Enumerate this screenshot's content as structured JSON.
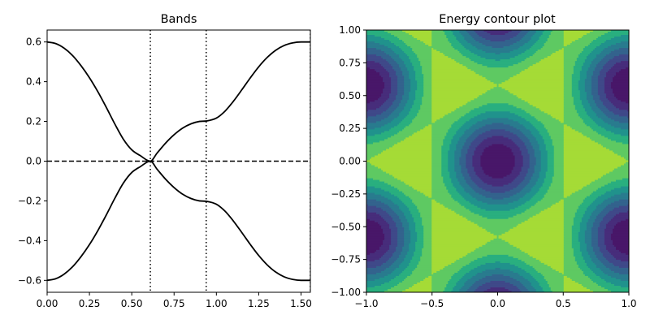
{
  "chart_data": [
    {
      "type": "line",
      "title": "Bands",
      "xlabel": "",
      "ylabel": "",
      "xlim": [
        0,
        1.5552
      ],
      "ylim": [
        -0.66,
        0.66
      ],
      "x_ticks": [
        0.0,
        0.25,
        0.5,
        0.75,
        1.0,
        1.25,
        1.5
      ],
      "x_tick_labels": [
        "0.00",
        "0.25",
        "0.50",
        "0.75",
        "1.00",
        "1.25",
        "1.50"
      ],
      "y_ticks": [
        0.6,
        0.4,
        0.2,
        0.0,
        -0.2,
        -0.4,
        -0.6
      ],
      "y_tick_labels": [
        "0.6",
        "0.4",
        "0.2",
        "0.0",
        "−0.2",
        "−0.4",
        "−0.6"
      ],
      "path_vertices_x": [
        0.0,
        0.6098,
        0.9398,
        1.5552
      ],
      "dotted_verticals_x": [
        0.6098,
        0.9398,
        1.5552
      ],
      "fermi_level_y": 0.0,
      "series": [
        {
          "name": "band-upper",
          "color": "#000000",
          "x": [
            0.0,
            0.05,
            0.1,
            0.15,
            0.2,
            0.25,
            0.3,
            0.35,
            0.4,
            0.45,
            0.5,
            0.55,
            0.6098,
            0.65,
            0.7,
            0.75,
            0.8,
            0.85,
            0.9,
            0.9398,
            1.0,
            1.05,
            1.1,
            1.15,
            1.2,
            1.25,
            1.3,
            1.35,
            1.4,
            1.45,
            1.5,
            1.5552
          ],
          "values": [
            0.6,
            0.592,
            0.569,
            0.532,
            0.481,
            0.42,
            0.349,
            0.27,
            0.187,
            0.111,
            0.057,
            0.028,
            0.0,
            0.041,
            0.091,
            0.133,
            0.166,
            0.188,
            0.2,
            0.202,
            0.217,
            0.251,
            0.301,
            0.359,
            0.419,
            0.475,
            0.522,
            0.558,
            0.582,
            0.595,
            0.6,
            0.6
          ]
        },
        {
          "name": "band-lower",
          "color": "#000000",
          "x": [
            0.0,
            0.05,
            0.1,
            0.15,
            0.2,
            0.25,
            0.3,
            0.35,
            0.4,
            0.45,
            0.5,
            0.55,
            0.6098,
            0.65,
            0.7,
            0.75,
            0.8,
            0.85,
            0.9,
            0.9398,
            1.0,
            1.05,
            1.1,
            1.15,
            1.2,
            1.25,
            1.3,
            1.35,
            1.4,
            1.45,
            1.5,
            1.5552
          ],
          "values": [
            -0.6,
            -0.592,
            -0.569,
            -0.532,
            -0.481,
            -0.42,
            -0.349,
            -0.27,
            -0.187,
            -0.111,
            -0.057,
            -0.028,
            0.0,
            -0.041,
            -0.091,
            -0.133,
            -0.166,
            -0.188,
            -0.2,
            -0.202,
            -0.217,
            -0.251,
            -0.301,
            -0.359,
            -0.419,
            -0.475,
            -0.522,
            -0.558,
            -0.582,
            -0.595,
            -0.6,
            -0.6
          ]
        }
      ]
    },
    {
      "type": "heatmap",
      "subtype": "filled-contour",
      "title": "Energy contour plot",
      "xlabel": "",
      "ylabel": "",
      "xlim": [
        -1.0,
        1.0
      ],
      "ylim": [
        -1.0,
        1.0
      ],
      "x_ticks": [
        -1.0,
        -0.5,
        0.0,
        0.5,
        1.0
      ],
      "x_tick_labels": [
        "−1.0",
        "−0.5",
        "0.0",
        "0.5",
        "1.0"
      ],
      "y_ticks": [
        1.0,
        0.75,
        0.5,
        0.25,
        0.0,
        -0.25,
        -0.5,
        -0.75,
        -1.0
      ],
      "y_tick_labels": [
        "1.00",
        "0.75",
        "0.50",
        "0.25",
        "0.00",
        "−0.25",
        "−0.50",
        "−0.75",
        "−1.00"
      ],
      "colormap": "viridis",
      "levels": [
        -0.6,
        -0.5,
        -0.4,
        -0.3,
        -0.2,
        -0.1,
        0.0,
        0.1,
        0.2,
        0.3
      ],
      "level_colors": [
        "#481769",
        "#472d7b",
        "#3f4989",
        "#33638d",
        "#297b8e",
        "#20928c",
        "#29af7f",
        "#5ec962",
        "#a5db36",
        "#dde318"
      ],
      "function": "E(x,y) = -0.2*(cos(2π·x) + 2·cos(π·x)·cos(√3·π·y))",
      "minima": [
        [
          0.0,
          0.0
        ],
        [
          0.0,
          1.0
        ],
        [
          0.0,
          -1.0
        ],
        [
          -1.0,
          0.55
        ],
        [
          -1.0,
          -0.55
        ],
        [
          1.0,
          0.55
        ],
        [
          1.0,
          -0.55
        ]
      ],
      "maxima": [
        [
          0.39,
          0.5
        ],
        [
          -0.39,
          0.5
        ],
        [
          0.39,
          -0.5
        ],
        [
          -0.39,
          -0.5
        ],
        [
          0.77,
          0.0
        ],
        [
          -0.77,
          0.0
        ],
        [
          0.77,
          0.95
        ],
        [
          -0.77,
          0.95
        ],
        [
          0.77,
          -0.95
        ],
        [
          -0.77,
          -0.95
        ]
      ]
    }
  ]
}
